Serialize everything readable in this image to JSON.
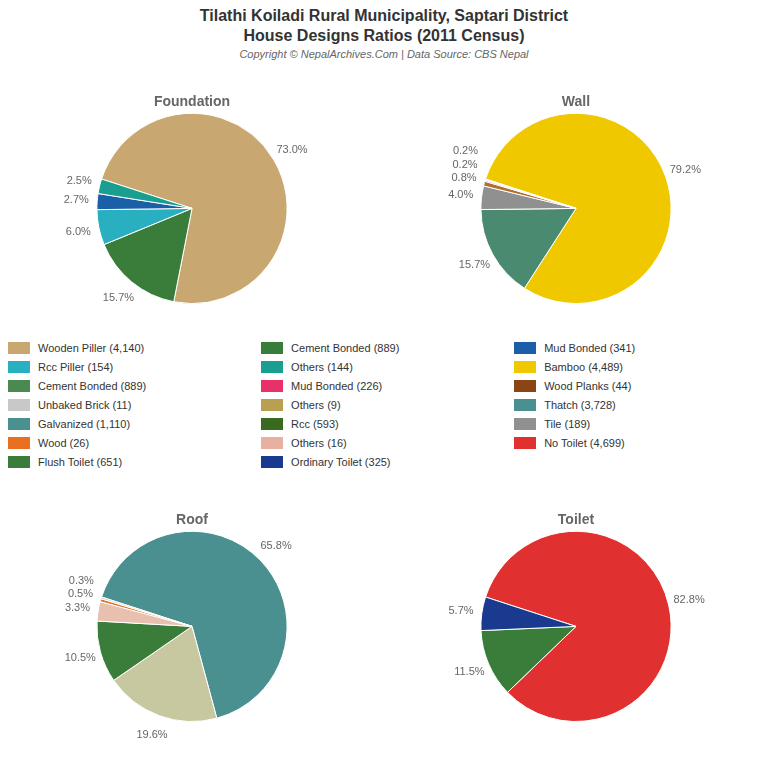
{
  "title": "Tilathi Koiladi Rural Municipality, Saptari District",
  "subtitle": "House Designs Ratios (2011 Census)",
  "annotations": [
    "Copyright © NepalArchives.Com | Data Source: CBS Nepal"
  ],
  "chart_data": [
    {
      "type": "pie",
      "title": "Foundation",
      "values": [
        73.0,
        15.7,
        6.0,
        2.7,
        2.5
      ],
      "value_labels": [
        "73.0%",
        "15.7%",
        "6.0%",
        "2.7%",
        "2.5%"
      ],
      "colors": [
        "#c8a870",
        "#3a7d3a",
        "#29b0c0",
        "#1a5fa8",
        "#1a9e8f"
      ],
      "data_labels": true
    },
    {
      "type": "pie",
      "title": "Wall",
      "values": [
        79.2,
        15.7,
        4.0,
        0.8,
        0.2,
        0.2
      ],
      "value_labels": [
        "79.2%",
        "15.7%",
        "4.0%",
        "0.8%",
        "0.2%",
        "0.2%"
      ],
      "colors": [
        "#f0c800",
        "#4a8a70",
        "#909090",
        "#b07030",
        "#e8306a",
        "#dddddd"
      ],
      "data_labels": true
    },
    {
      "type": "pie",
      "title": "Roof",
      "values": [
        65.8,
        19.6,
        10.5,
        3.3,
        0.5,
        0.3
      ],
      "value_labels": [
        "65.8%",
        "19.6%",
        "10.5%",
        "3.3%",
        "0.5%",
        "0.3%"
      ],
      "colors": [
        "#4a9090",
        "#c8c8a0",
        "#3a7d3a",
        "#e8c0b0",
        "#e87020",
        "#d0d0d0"
      ],
      "data_labels": true
    },
    {
      "type": "pie",
      "title": "Toilet",
      "values": [
        82.8,
        11.5,
        5.7
      ],
      "value_labels": [
        "82.8%",
        "11.5%",
        "5.7%"
      ],
      "colors": [
        "#e03030",
        "#3a7d3a",
        "#1a3a8f"
      ],
      "data_labels": true
    }
  ],
  "legend_entries": [
    [
      {
        "name": "Wooden Piller (4,140)",
        "color": "#c8a870"
      },
      {
        "name": "Rcc Piller (154)",
        "color": "#29b0c0"
      },
      {
        "name": "Cement Bonded (889)",
        "color": "#4a8a50"
      },
      {
        "name": "Unbaked Brick (11)",
        "color": "#c8c8c8"
      },
      {
        "name": "Galvanized (1,110)",
        "color": "#4a9090"
      },
      {
        "name": "Wood (26)",
        "color": "#e87020"
      },
      {
        "name": "Flush Toilet (651)",
        "color": "#3a7d3a"
      }
    ],
    [
      {
        "name": "Cement Bonded (889)",
        "color": "#3a7d3a"
      },
      {
        "name": "Others (144)",
        "color": "#1a9e8f"
      },
      {
        "name": "Mud Bonded (226)",
        "color": "#e8306a"
      },
      {
        "name": "Others (9)",
        "color": "#b8a050"
      },
      {
        "name": "Rcc (593)",
        "color": "#3a6a20"
      },
      {
        "name": "Others (16)",
        "color": "#e8b0a0"
      },
      {
        "name": "Ordinary Toilet (325)",
        "color": "#1a3a8f"
      }
    ],
    [
      {
        "name": "Mud Bonded (341)",
        "color": "#1a5fa8"
      },
      {
        "name": "Bamboo (4,489)",
        "color": "#f0c800"
      },
      {
        "name": "Wood Planks (44)",
        "color": "#8B4513"
      },
      {
        "name": "Thatch (3,728)",
        "color": "#4a9090"
      },
      {
        "name": "Tile (189)",
        "color": "#909090"
      },
      {
        "name": "No Toilet (4,699)",
        "color": "#e03030"
      }
    ]
  ]
}
